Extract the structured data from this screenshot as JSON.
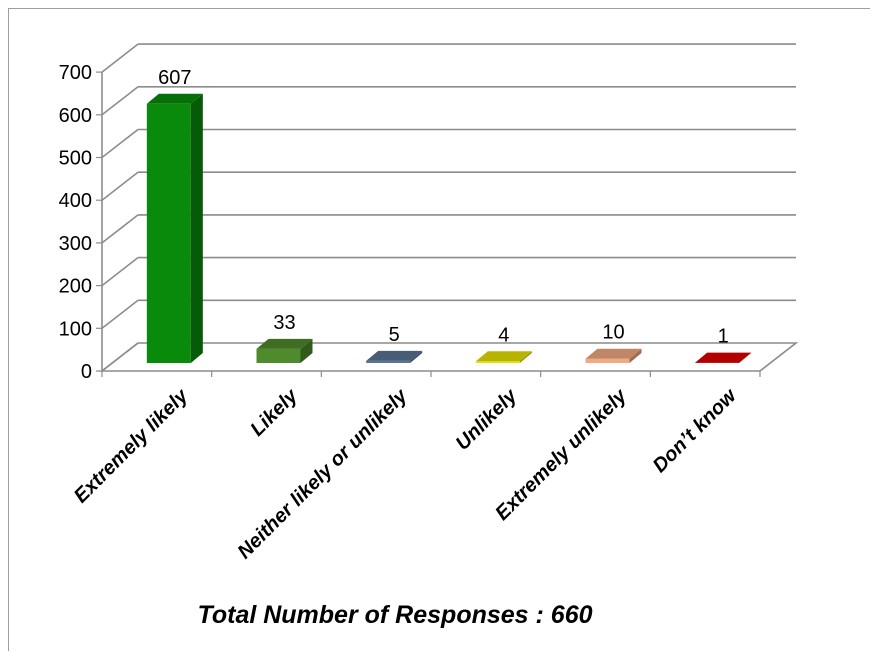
{
  "chart_data": {
    "type": "bar",
    "categories": [
      "Extremely likely",
      "Likely",
      "Neither likely or unlikely",
      "Unlikely",
      "Extremely unlikely",
      "Don’t know"
    ],
    "values": [
      607,
      33,
      5,
      4,
      10,
      1
    ],
    "data_labels": [
      "607",
      "33",
      "5",
      "4",
      "10",
      "1"
    ],
    "colors": [
      "#0a8a0a",
      "#4f8a2c",
      "#5b7394",
      "#e5e100",
      "#f0a980",
      "#dd0000"
    ],
    "ylim": [
      0,
      700
    ],
    "yticks": [
      0,
      100,
      200,
      300,
      400,
      500,
      600,
      700
    ],
    "grid": true,
    "legend": "none",
    "title": "",
    "xlabel": "",
    "ylabel": "",
    "footer": "Total Number of Responses : 660"
  }
}
